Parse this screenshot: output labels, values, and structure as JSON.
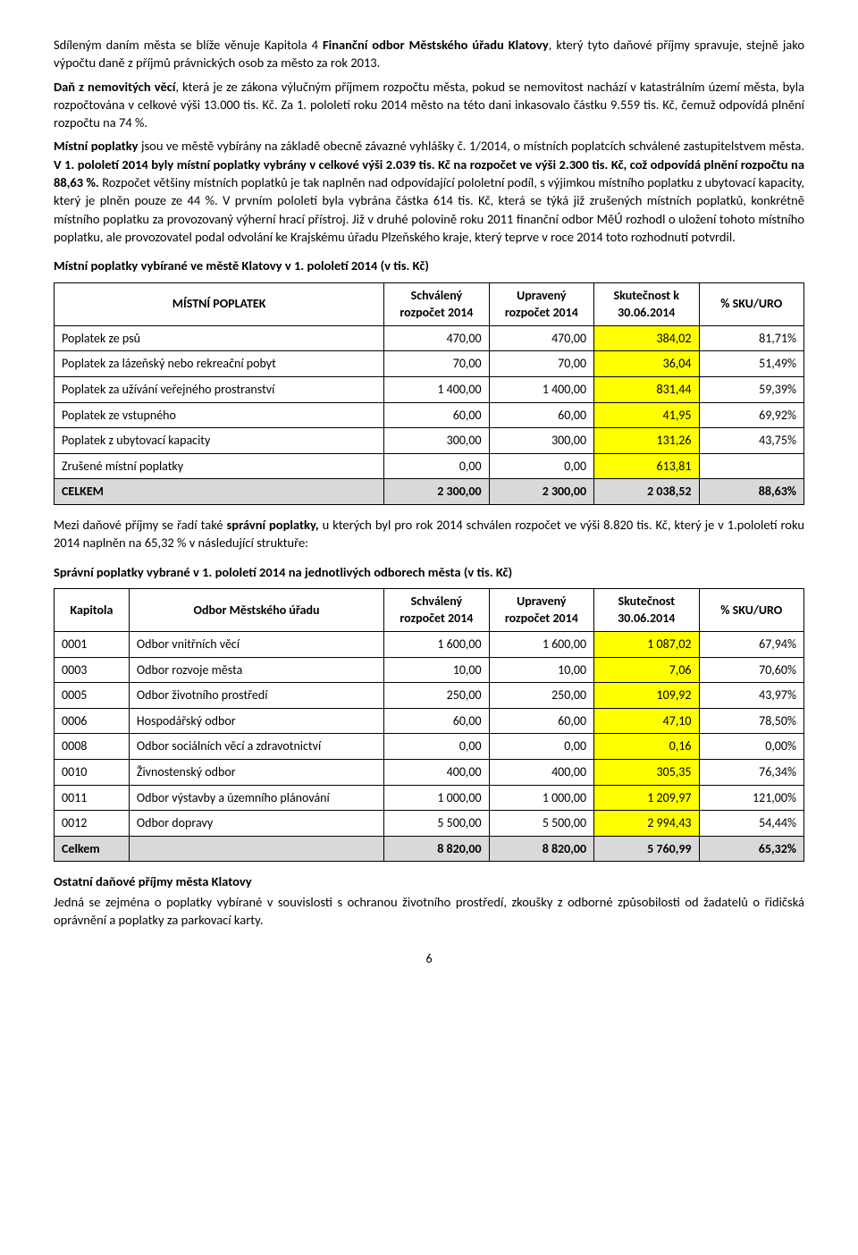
{
  "para1": {
    "pre": "Sdíleným daním města se blíže věnuje Kapitola 4 ",
    "bold1": "Finanční odbor Městského úřadu Klatovy",
    "post": ", který tyto daňové příjmy spravuje, stejně jako výpočtu daně z příjmů právnických osob za město za rok 2013."
  },
  "para2": {
    "bold1": "Daň z nemovitých věcí",
    "rest": ", která je ze zákona výlučným příjmem rozpočtu města, pokud se nemovitost nachází v katastrálním území města, byla rozpočtována v celkové výši 13.000 tis. Kč. Za 1. pololetí roku 2014 město na této dani inkasovalo částku 9.559 tis. Kč, čemuž odpovídá plnění rozpočtu na 74 %."
  },
  "para3": {
    "bold1": "Místní poplatky",
    "mid1": " jsou ve městě vybírány na základě obecně závazné vyhlášky č. 1/2014, o místních poplatcích schválené zastupitelstvem města. ",
    "bold2": "V 1. pololetí 2014 byly místní poplatky vybrány v celkové výši 2.039 tis. Kč na rozpočet ve výši 2.300 tis. Kč, což odpovídá plnění rozpočtu na 88,63 %.",
    "rest": " Rozpočet většiny místních poplatků je tak naplněn nad odpovídající pololetní podíl, s výjimkou místního poplatku z ubytovací kapacity, který je plněn pouze ze 44 %. V prvním pololetí byla vybrána částka 614 tis. Kč, která se týká již zrušených místních poplatků, konkrétně místního poplatku za provozovaný výherní hrací přístroj. Již  v druhé polovině roku 2011 finanční odbor MěÚ rozhodl o uložení tohoto místního poplatku, ale provozovatel podal odvolání ke Krajskému úřadu Plzeňského kraje, který teprve v roce 2014 toto rozhodnutí potvrdil."
  },
  "table1": {
    "title": "Místní poplatky vybírané ve městě Klatovy v 1. pololetí 2014 (v tis. Kč)",
    "headers": [
      "MÍSTNÍ POPLATEK",
      "Schválený rozpočet 2014",
      "Upravený rozpočet 2014",
      "Skutečnost k 30.06.2014",
      "% SKU/URO"
    ],
    "rows": [
      {
        "label": "Poplatek ze psů",
        "c1": "470,00",
        "c2": "470,00",
        "hl": "384,02",
        "pct": "81,71%"
      },
      {
        "label": "Poplatek za lázeňský nebo rekreační pobyt",
        "c1": "70,00",
        "c2": "70,00",
        "hl": "36,04",
        "pct": "51,49%"
      },
      {
        "label": "Poplatek za užívání veřejného prostranství",
        "c1": "1 400,00",
        "c2": "1 400,00",
        "hl": "831,44",
        "pct": "59,39%"
      },
      {
        "label": "Poplatek ze vstupného",
        "c1": "60,00",
        "c2": "60,00",
        "hl": "41,95",
        "pct": "69,92%"
      },
      {
        "label": "Poplatek z ubytovací kapacity",
        "c1": "300,00",
        "c2": "300,00",
        "hl": "131,26",
        "pct": "43,75%"
      },
      {
        "label": "Zrušené místní poplatky",
        "c1": "0,00",
        "c2": "0,00",
        "hl": "613,81",
        "pct": ""
      }
    ],
    "total": {
      "label": "CELKEM",
      "c1": "2 300,00",
      "c2": "2 300,00",
      "c3": "2 038,52",
      "pct": "88,63%"
    }
  },
  "para4": {
    "pre": "Mezi daňové příjmy se řadí také ",
    "bold1": "správní poplatky,",
    "rest": " u kterých byl pro rok 2014 schválen rozpočet ve výši 8.820 tis. Kč, který je v 1.pololetí roku 2014 naplněn na 65,32 % v následující struktuře:"
  },
  "table2": {
    "title": "Správní poplatky vybrané v 1. pololetí 2014 na jednotlivých odborech města (v tis. Kč)",
    "headers": [
      "Kapitola",
      "Odbor Městského úřadu",
      "Schválený rozpočet 2014",
      "Upravený rozpočet 2014",
      "Skutečnost 30.06.2014",
      "% SKU/URO"
    ],
    "rows": [
      {
        "k": "0001",
        "label": "Odbor vnitřních věcí",
        "c1": "1 600,00",
        "c2": "1 600,00",
        "hl": "1 087,02",
        "pct": "67,94%"
      },
      {
        "k": "0003",
        "label": "Odbor rozvoje města",
        "c1": "10,00",
        "c2": "10,00",
        "hl": "7,06",
        "pct": "70,60%"
      },
      {
        "k": "0005",
        "label": "Odbor životního prostředí",
        "c1": "250,00",
        "c2": "250,00",
        "hl": "109,92",
        "pct": "43,97%"
      },
      {
        "k": "0006",
        "label": "Hospodářský odbor",
        "c1": "60,00",
        "c2": "60,00",
        "hl": "47,10",
        "pct": "78,50%"
      },
      {
        "k": "0008",
        "label": "Odbor sociálních věcí a zdravotnictví",
        "c1": "0,00",
        "c2": "0,00",
        "hl": "0,16",
        "pct": "0,00%"
      },
      {
        "k": "0010",
        "label": "Živnostenský odbor",
        "c1": "400,00",
        "c2": "400,00",
        "hl": "305,35",
        "pct": "76,34%"
      },
      {
        "k": "0011",
        "label": "Odbor výstavby a územního plánování",
        "c1": "1 000,00",
        "c2": "1 000,00",
        "hl": "1 209,97",
        "pct": "121,00%"
      },
      {
        "k": "0012",
        "label": "Odbor dopravy",
        "c1": "5 500,00",
        "c2": "5 500,00",
        "hl": "2 994,43",
        "pct": "54,44%"
      }
    ],
    "total": {
      "k": "Celkem",
      "label": "",
      "c1": "8 820,00",
      "c2": "8 820,00",
      "c3": "5 760,99",
      "pct": "65,32%"
    }
  },
  "ostatni": {
    "heading": "Ostatní daňové příjmy města Klatovy",
    "body": "Jedná se zejména o poplatky vybírané v souvislosti s ochranou životního prostředí, zkoušky z odborné způsobilosti od žadatelů o řidičská oprávnění a poplatky za parkovací karty."
  },
  "pagenum": "6",
  "colors": {
    "highlight": "#ffff00",
    "totalbg": "#d9d9d9"
  }
}
